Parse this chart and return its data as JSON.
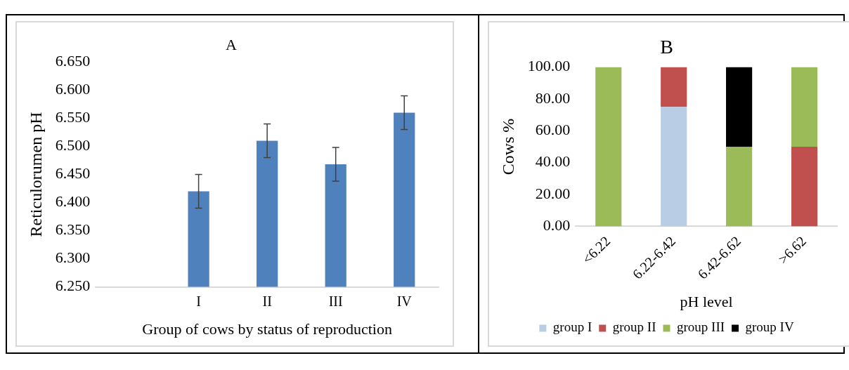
{
  "chart_data": [
    {
      "type": "bar",
      "title": "A",
      "xlabel": "Group of cows by status of reproduction",
      "ylabel": "Reticulorumen pH",
      "categories": [
        null,
        "I",
        "II",
        "III",
        "IV"
      ],
      "values": [
        null,
        6.42,
        6.51,
        6.468,
        6.56
      ],
      "errors": [
        null,
        0.03,
        0.03,
        0.03,
        0.03
      ],
      "color": "#4f81bd",
      "ylim": [
        6.25,
        6.65
      ],
      "yticks": [
        {
          "value": 6.25,
          "label": "6.250"
        },
        {
          "value": 6.3,
          "label": "6.300"
        },
        {
          "value": 6.35,
          "label": "6.350"
        },
        {
          "value": 6.4,
          "label": "6.400"
        },
        {
          "value": 6.45,
          "label": "6.450"
        },
        {
          "value": 6.5,
          "label": "6.500"
        },
        {
          "value": 6.55,
          "label": "6.550"
        },
        {
          "value": 6.6,
          "label": "6.600"
        },
        {
          "value": 6.65,
          "label": "6.650"
        }
      ],
      "grid": false,
      "legend": false
    },
    {
      "type": "bar",
      "title": "B",
      "xlabel": "pH level",
      "ylabel": "Cows %",
      "categories": [
        "<6.22",
        "6.22-6.42",
        "6.42-6.62",
        ">6.62"
      ],
      "stacked": true,
      "series": [
        {
          "name": "group I",
          "color": "#b9cde5",
          "values": [
            0,
            75,
            0,
            0
          ]
        },
        {
          "name": "group II",
          "color": "#c0504d",
          "values": [
            0,
            25,
            0,
            50
          ]
        },
        {
          "name": "group III",
          "color": "#9bbb59",
          "values": [
            100,
            0,
            50,
            50
          ]
        },
        {
          "name": "group IV",
          "color": "#000000",
          "values": [
            0,
            0,
            50,
            0
          ]
        }
      ],
      "ylim": [
        0,
        100
      ],
      "yticks": [
        {
          "value": 0,
          "label": "0.00"
        },
        {
          "value": 20,
          "label": "20.00"
        },
        {
          "value": 40,
          "label": "40.00"
        },
        {
          "value": 60,
          "label": "60.00"
        },
        {
          "value": 80,
          "label": "80.00"
        },
        {
          "value": 100,
          "label": "100.00"
        }
      ],
      "grid": false,
      "legend": "bottom"
    }
  ]
}
